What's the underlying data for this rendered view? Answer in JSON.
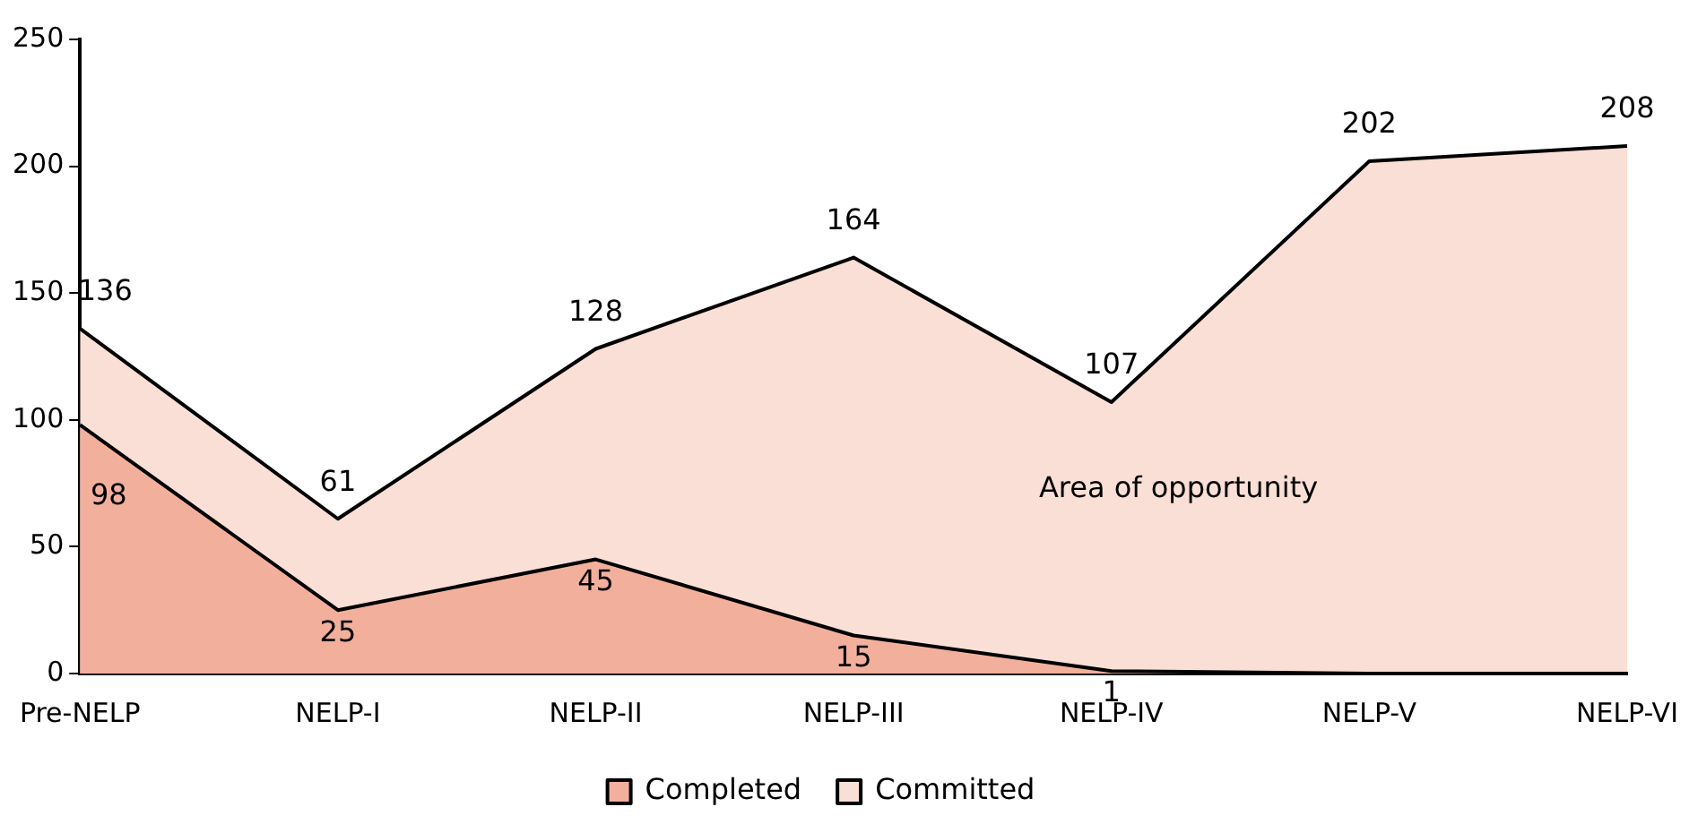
{
  "chart_data": {
    "type": "area",
    "categories": [
      "Pre-NELP",
      "NELP-I",
      "NELP-II",
      "NELP-III",
      "NELP-IV",
      "NELP-V",
      "NELP-VI"
    ],
    "series": [
      {
        "name": "Committed",
        "color": "#f9dfd5",
        "values": [
          136,
          61,
          128,
          164,
          107,
          202,
          208
        ]
      },
      {
        "name": "Completed",
        "color": "#f2b09c",
        "values": [
          98,
          25,
          45,
          15,
          1,
          0,
          0
        ],
        "value_labels": [
          "98",
          "25",
          "45",
          "15",
          "1",
          null,
          null
        ]
      }
    ],
    "ylim": [
      0,
      250
    ],
    "yticks": [
      0,
      50,
      100,
      150,
      200,
      250
    ],
    "grid": false,
    "legend": "bottom",
    "data_labels": true,
    "annotations": [
      "Area of opportunity"
    ]
  }
}
